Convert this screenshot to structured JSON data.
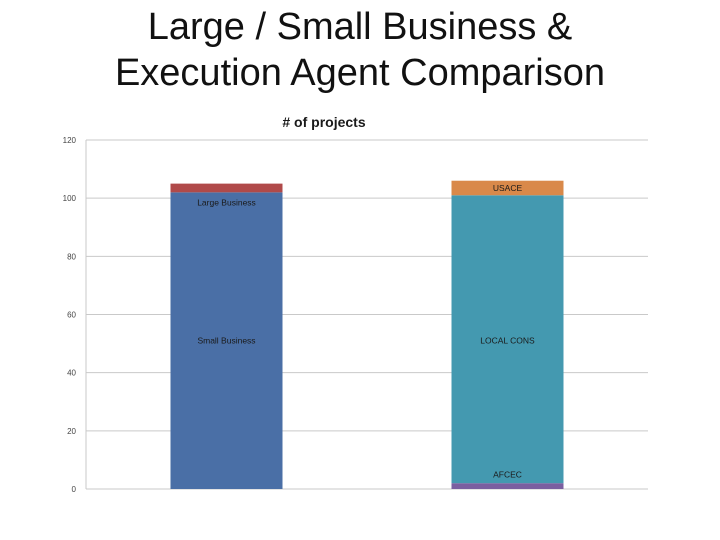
{
  "slide": {
    "title_line1": "Large / Small Business &",
    "title_line2": "Execution Agent Comparison"
  },
  "chart_data": {
    "type": "bar",
    "stacked": true,
    "title": "# of projects",
    "ylim": [
      0,
      120
    ],
    "yticks": [
      0,
      20,
      40,
      60,
      80,
      100,
      120
    ],
    "grid": true,
    "legend": "none",
    "bars": [
      {
        "category": "",
        "segments": [
          {
            "name": "Small Business",
            "value": 102,
            "color": "#4a6fa6",
            "label_at": 51
          },
          {
            "name": "Large Business",
            "value": 3,
            "color": "#b04a4a",
            "label_at": 98.5
          }
        ]
      },
      {
        "category": "",
        "segments": [
          {
            "name": "AFCEC",
            "value": 2,
            "color": "#7b5fa0",
            "label_at": 5
          },
          {
            "name": "LOCAL CONS",
            "value": 99,
            "color": "#4499b0",
            "label_at": 51
          },
          {
            "name": "USACE",
            "value": 5,
            "color": "#d9894a",
            "label_at": 103.5
          }
        ]
      }
    ]
  }
}
